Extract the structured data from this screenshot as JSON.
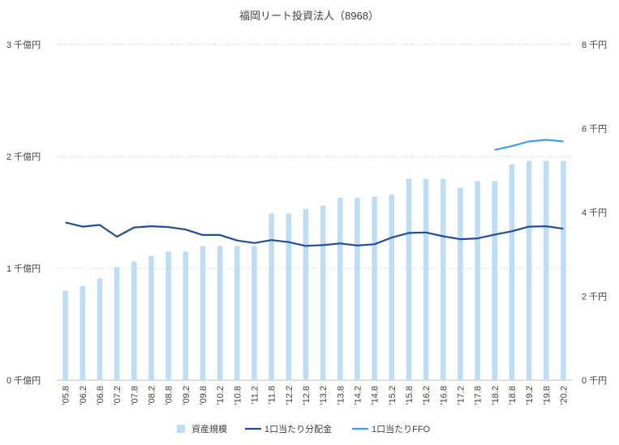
{
  "chart_data": {
    "type": "bar+line",
    "title": "福岡リート投資法人（8968）",
    "categories": [
      "'05.8",
      "'06.2",
      "'06.8",
      "'07.2",
      "'07.8",
      "'08.2",
      "'08.8",
      "'09.2",
      "'09.8",
      "'10.2",
      "'10.8",
      "'11.2",
      "'11.8",
      "'12.2",
      "'12.8",
      "'13.2",
      "'13.8",
      "'14.2",
      "'14.8",
      "'15.2",
      "'15.8",
      "'16.2",
      "'16.8",
      "'17.2",
      "'17.8",
      "'18.2",
      "'18.8",
      "'19.2",
      "'19.8",
      "'20.2"
    ],
    "left_axis": {
      "unit": "千億円",
      "min": 0,
      "max": 3,
      "ticks": [
        0,
        1,
        2,
        3
      ],
      "tick_labels": [
        "0 千億円",
        "1 千億円",
        "2 千億円",
        "3 千億円"
      ]
    },
    "right_axis": {
      "unit": "千円",
      "min": 0,
      "max": 8,
      "ticks": [
        0,
        2,
        4,
        6,
        8
      ],
      "tick_labels": [
        "0 千円",
        "2 千円",
        "4 千円",
        "6 千円",
        "8 千円"
      ]
    },
    "series": [
      {
        "name": "資産規模",
        "type": "bar",
        "axis": "left",
        "color": "#bddcf5",
        "values": [
          0.8,
          0.84,
          0.91,
          1.01,
          1.06,
          1.11,
          1.15,
          1.15,
          1.2,
          1.2,
          1.2,
          1.2,
          1.49,
          1.49,
          1.53,
          1.56,
          1.63,
          1.63,
          1.64,
          1.66,
          1.8,
          1.8,
          1.8,
          1.72,
          1.78,
          1.78,
          1.93,
          1.96,
          1.96,
          1.96
        ]
      },
      {
        "name": "1口当たり分配金",
        "type": "line",
        "axis": "right",
        "color": "#1f4e9c",
        "values": [
          3.76,
          3.66,
          3.7,
          3.42,
          3.64,
          3.67,
          3.65,
          3.59,
          3.46,
          3.46,
          3.33,
          3.27,
          3.34,
          3.29,
          3.2,
          3.22,
          3.26,
          3.21,
          3.24,
          3.4,
          3.51,
          3.52,
          3.43,
          3.36,
          3.38,
          3.47,
          3.55,
          3.66,
          3.67,
          3.61
        ]
      },
      {
        "name": "1口当たりFFO",
        "type": "line",
        "axis": "right",
        "color": "#3e9ee8",
        "values": [
          null,
          null,
          null,
          null,
          null,
          null,
          null,
          null,
          null,
          null,
          null,
          null,
          null,
          null,
          null,
          null,
          null,
          null,
          null,
          null,
          null,
          null,
          null,
          null,
          null,
          5.49,
          5.58,
          5.69,
          5.73,
          5.69
        ]
      }
    ],
    "legend_position": "bottom"
  }
}
